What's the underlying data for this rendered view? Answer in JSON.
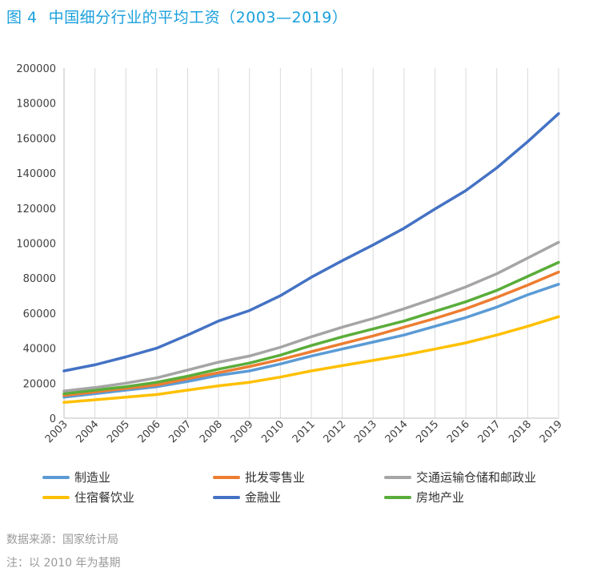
{
  "title": {
    "fig": "图 4",
    "text": "中国细分行业的平均工资（2003—2019）"
  },
  "footnotes": {
    "source": "数据来源：国家统计局",
    "note": "注：以 2010 年为基期"
  },
  "chart_data": {
    "type": "line",
    "title": "中国细分行业的平均工资（2003—2019）",
    "xlabel": "",
    "ylabel": "",
    "ylim": [
      0,
      200000
    ],
    "yticks": [
      "0",
      "20000",
      "40000",
      "60000",
      "80000",
      "100000",
      "120000",
      "140000",
      "160000",
      "180000",
      "200000"
    ],
    "grid": "vertical",
    "legend": "bottom",
    "categories": [
      "2003",
      "2004",
      "2005",
      "2006",
      "2007",
      "2008",
      "2009",
      "2010",
      "2011",
      "2012",
      "2013",
      "2014",
      "2015",
      "2016",
      "2017",
      "2018",
      "2019"
    ],
    "series": [
      {
        "name": "制造业",
        "color": "#5b9bd5",
        "values": [
          12000,
          14000,
          16000,
          18000,
          21000,
          24500,
          27000,
          31000,
          35500,
          39500,
          43500,
          47500,
          52500,
          57500,
          63500,
          70500,
          76500
        ]
      },
      {
        "name": "批发零售业",
        "color": "#ed7d31",
        "values": [
          13000,
          15000,
          17000,
          19000,
          22500,
          26000,
          29500,
          33500,
          38000,
          42500,
          47000,
          52000,
          57000,
          62500,
          69000,
          76000,
          83500
        ]
      },
      {
        "name": "交通运输仓储和邮政业",
        "color": "#a5a5a5",
        "values": [
          15500,
          17500,
          20000,
          23000,
          27500,
          32000,
          35500,
          40500,
          46500,
          52000,
          57000,
          62500,
          68500,
          75000,
          82500,
          91500,
          100500
        ]
      },
      {
        "name": "住宿餐饮业",
        "color": "#ffc000",
        "values": [
          9000,
          10500,
          12000,
          13500,
          16000,
          18500,
          20500,
          23500,
          27000,
          30000,
          33000,
          36000,
          39500,
          43000,
          47500,
          52500,
          58000
        ]
      },
      {
        "name": "金融业",
        "color": "#4472c4",
        "values": [
          27000,
          30500,
          35000,
          40000,
          47500,
          55500,
          61500,
          70000,
          80500,
          90000,
          99000,
          108500,
          119500,
          130000,
          143000,
          158000,
          174000
        ]
      },
      {
        "name": "房地产业",
        "color": "#5aad3a",
        "values": [
          14000,
          16000,
          18000,
          20500,
          24000,
          28000,
          31500,
          36000,
          41500,
          46500,
          51000,
          55500,
          61000,
          66500,
          73000,
          81000,
          89000
        ]
      }
    ]
  }
}
